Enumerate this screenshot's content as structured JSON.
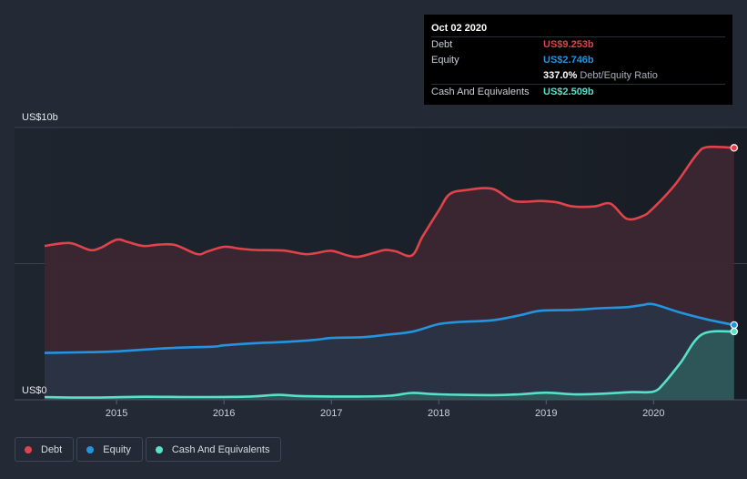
{
  "chart_data": {
    "type": "area",
    "y_axis": {
      "top_label": "US$10b",
      "bottom_label": "US$0",
      "ylim": [
        0,
        10
      ]
    },
    "x_ticks": [
      "2015",
      "2016",
      "2017",
      "2018",
      "2019",
      "2020"
    ],
    "x_tick_values": [
      2015,
      2016,
      2017,
      2018,
      2019,
      2020
    ],
    "xlim": [
      2014.05,
      2020.87
    ],
    "series": [
      {
        "name": "Debt",
        "color": "#e0434a",
        "points": [
          [
            2014.33,
            5.65
          ],
          [
            2014.5,
            5.75
          ],
          [
            2014.6,
            5.73
          ],
          [
            2014.75,
            5.5
          ],
          [
            2014.85,
            5.58
          ],
          [
            2015.0,
            5.88
          ],
          [
            2015.1,
            5.8
          ],
          [
            2015.25,
            5.65
          ],
          [
            2015.4,
            5.7
          ],
          [
            2015.55,
            5.68
          ],
          [
            2015.75,
            5.35
          ],
          [
            2015.85,
            5.45
          ],
          [
            2016.0,
            5.62
          ],
          [
            2016.15,
            5.55
          ],
          [
            2016.3,
            5.5
          ],
          [
            2016.55,
            5.48
          ],
          [
            2016.75,
            5.35
          ],
          [
            2016.85,
            5.38
          ],
          [
            2017.0,
            5.47
          ],
          [
            2017.15,
            5.3
          ],
          [
            2017.25,
            5.25
          ],
          [
            2017.4,
            5.4
          ],
          [
            2017.5,
            5.5
          ],
          [
            2017.6,
            5.45
          ],
          [
            2017.75,
            5.3
          ],
          [
            2017.85,
            6.0
          ],
          [
            2018.0,
            6.95
          ],
          [
            2018.1,
            7.55
          ],
          [
            2018.25,
            7.7
          ],
          [
            2018.5,
            7.75
          ],
          [
            2018.7,
            7.3
          ],
          [
            2018.95,
            7.3
          ],
          [
            2019.1,
            7.25
          ],
          [
            2019.25,
            7.1
          ],
          [
            2019.45,
            7.1
          ],
          [
            2019.6,
            7.2
          ],
          [
            2019.75,
            6.65
          ],
          [
            2019.9,
            6.75
          ],
          [
            2020.0,
            7.05
          ],
          [
            2020.2,
            7.9
          ],
          [
            2020.4,
            9.0
          ],
          [
            2020.5,
            9.28
          ],
          [
            2020.75,
            9.253
          ]
        ]
      },
      {
        "name": "Equity",
        "color": "#2394df",
        "points": [
          [
            2014.33,
            1.72
          ],
          [
            2014.75,
            1.75
          ],
          [
            2015.0,
            1.78
          ],
          [
            2015.5,
            1.9
          ],
          [
            2015.9,
            1.95
          ],
          [
            2016.0,
            2.0
          ],
          [
            2016.3,
            2.08
          ],
          [
            2016.55,
            2.12
          ],
          [
            2016.85,
            2.2
          ],
          [
            2017.0,
            2.27
          ],
          [
            2017.3,
            2.3
          ],
          [
            2017.5,
            2.38
          ],
          [
            2017.75,
            2.5
          ],
          [
            2018.0,
            2.78
          ],
          [
            2018.2,
            2.86
          ],
          [
            2018.5,
            2.92
          ],
          [
            2018.75,
            3.1
          ],
          [
            2018.95,
            3.27
          ],
          [
            2019.25,
            3.3
          ],
          [
            2019.5,
            3.36
          ],
          [
            2019.75,
            3.4
          ],
          [
            2019.9,
            3.48
          ],
          [
            2020.0,
            3.51
          ],
          [
            2020.25,
            3.2
          ],
          [
            2020.5,
            2.95
          ],
          [
            2020.75,
            2.746
          ]
        ]
      },
      {
        "name": "Cash And Equivalents",
        "color": "#58e0c9",
        "points": [
          [
            2014.33,
            0.1
          ],
          [
            2014.75,
            0.08
          ],
          [
            2015.25,
            0.11
          ],
          [
            2015.75,
            0.1
          ],
          [
            2016.25,
            0.12
          ],
          [
            2016.5,
            0.18
          ],
          [
            2016.75,
            0.13
          ],
          [
            2017.25,
            0.12
          ],
          [
            2017.55,
            0.15
          ],
          [
            2017.75,
            0.25
          ],
          [
            2018.0,
            0.2
          ],
          [
            2018.5,
            0.17
          ],
          [
            2018.75,
            0.2
          ],
          [
            2019.0,
            0.26
          ],
          [
            2019.25,
            0.2
          ],
          [
            2019.5,
            0.22
          ],
          [
            2019.8,
            0.28
          ],
          [
            2020.0,
            0.3
          ],
          [
            2020.1,
            0.62
          ],
          [
            2020.25,
            1.35
          ],
          [
            2020.45,
            2.4
          ],
          [
            2020.75,
            2.509
          ]
        ]
      }
    ],
    "tooltip": {
      "date": "Oct 02 2020",
      "rows": [
        {
          "label": "Debt",
          "value": "US$9.253b",
          "color": "#e0434a"
        },
        {
          "label": "Equity",
          "value": "US$2.746b",
          "color": "#2394df"
        },
        {
          "ratio_value": "337.0%",
          "ratio_label": "Debt/Equity Ratio"
        },
        {
          "label": "Cash And Equivalents",
          "value": "US$2.509b",
          "color": "#58e0c9"
        }
      ]
    },
    "legend": [
      {
        "label": "Debt",
        "color": "#e0434a"
      },
      {
        "label": "Equity",
        "color": "#2394df"
      },
      {
        "label": "Cash And Equivalents",
        "color": "#58e0c9"
      }
    ]
  }
}
